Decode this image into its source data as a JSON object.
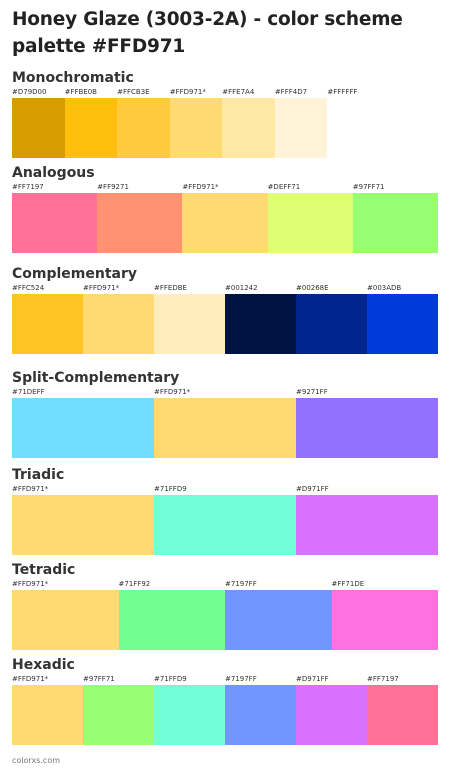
{
  "title": "Honey Glaze (3003-2A) - color scheme palette #FFD971",
  "footer": "colorxs.com",
  "sections": [
    {
      "name": "Monochromatic",
      "swatches": [
        {
          "label": "#D79D00",
          "color": "#D79D00"
        },
        {
          "label": "#FFBE0B",
          "color": "#FFBE0B"
        },
        {
          "label": "#FFCB3E",
          "color": "#FFCB3E"
        },
        {
          "label": "#FFD971*",
          "color": "#FFD971"
        },
        {
          "label": "#FFE7A4",
          "color": "#FFE7A4"
        },
        {
          "label": "#FFF4D7",
          "color": "#FFF4D7"
        },
        {
          "label": "#FFFFFF",
          "color": "#FFFFFF"
        }
      ]
    },
    {
      "name": "Analogous",
      "swatches": [
        {
          "label": "#FF7197",
          "color": "#FF7197"
        },
        {
          "label": "#FF9271",
          "color": "#FF9271"
        },
        {
          "label": "#FFD971*",
          "color": "#FFD971"
        },
        {
          "label": "#DEFF71",
          "color": "#DEFF71"
        },
        {
          "label": "#97FF71",
          "color": "#97FF71"
        }
      ]
    },
    {
      "name": "Complementary",
      "swatches": [
        {
          "label": "#FFC524",
          "color": "#FFC524"
        },
        {
          "label": "#FFD971*",
          "color": "#FFD971"
        },
        {
          "label": "#FFEDBE",
          "color": "#FFEDBE"
        },
        {
          "label": "#001242",
          "color": "#001242"
        },
        {
          "label": "#00268E",
          "color": "#00268E"
        },
        {
          "label": "#003ADB",
          "color": "#003ADB"
        }
      ]
    },
    {
      "name": "Split-Complementary",
      "swatches": [
        {
          "label": "#71DEFF",
          "color": "#71DEFF"
        },
        {
          "label": "#FFD971*",
          "color": "#FFD971"
        },
        {
          "label": "#9271FF",
          "color": "#9271FF"
        }
      ]
    },
    {
      "name": "Triadic",
      "swatches": [
        {
          "label": "#FFD971*",
          "color": "#FFD971"
        },
        {
          "label": "#71FFD9",
          "color": "#71FFD9"
        },
        {
          "label": "#D971FF",
          "color": "#D971FF"
        }
      ]
    },
    {
      "name": "Tetradic",
      "swatches": [
        {
          "label": "#FFD971*",
          "color": "#FFD971"
        },
        {
          "label": "#71FF92",
          "color": "#71FF92"
        },
        {
          "label": "#7197FF",
          "color": "#7197FF"
        },
        {
          "label": "#FF71DE",
          "color": "#FF71DE"
        }
      ]
    },
    {
      "name": "Hexadic",
      "swatches": [
        {
          "label": "#FFD971*",
          "color": "#FFD971"
        },
        {
          "label": "#97FF71",
          "color": "#97FF71"
        },
        {
          "label": "#71FFD9",
          "color": "#71FFD9"
        },
        {
          "label": "#7197FF",
          "color": "#7197FF"
        },
        {
          "label": "#D971FF",
          "color": "#D971FF"
        },
        {
          "label": "#FF7197",
          "color": "#FF7197"
        }
      ]
    }
  ]
}
